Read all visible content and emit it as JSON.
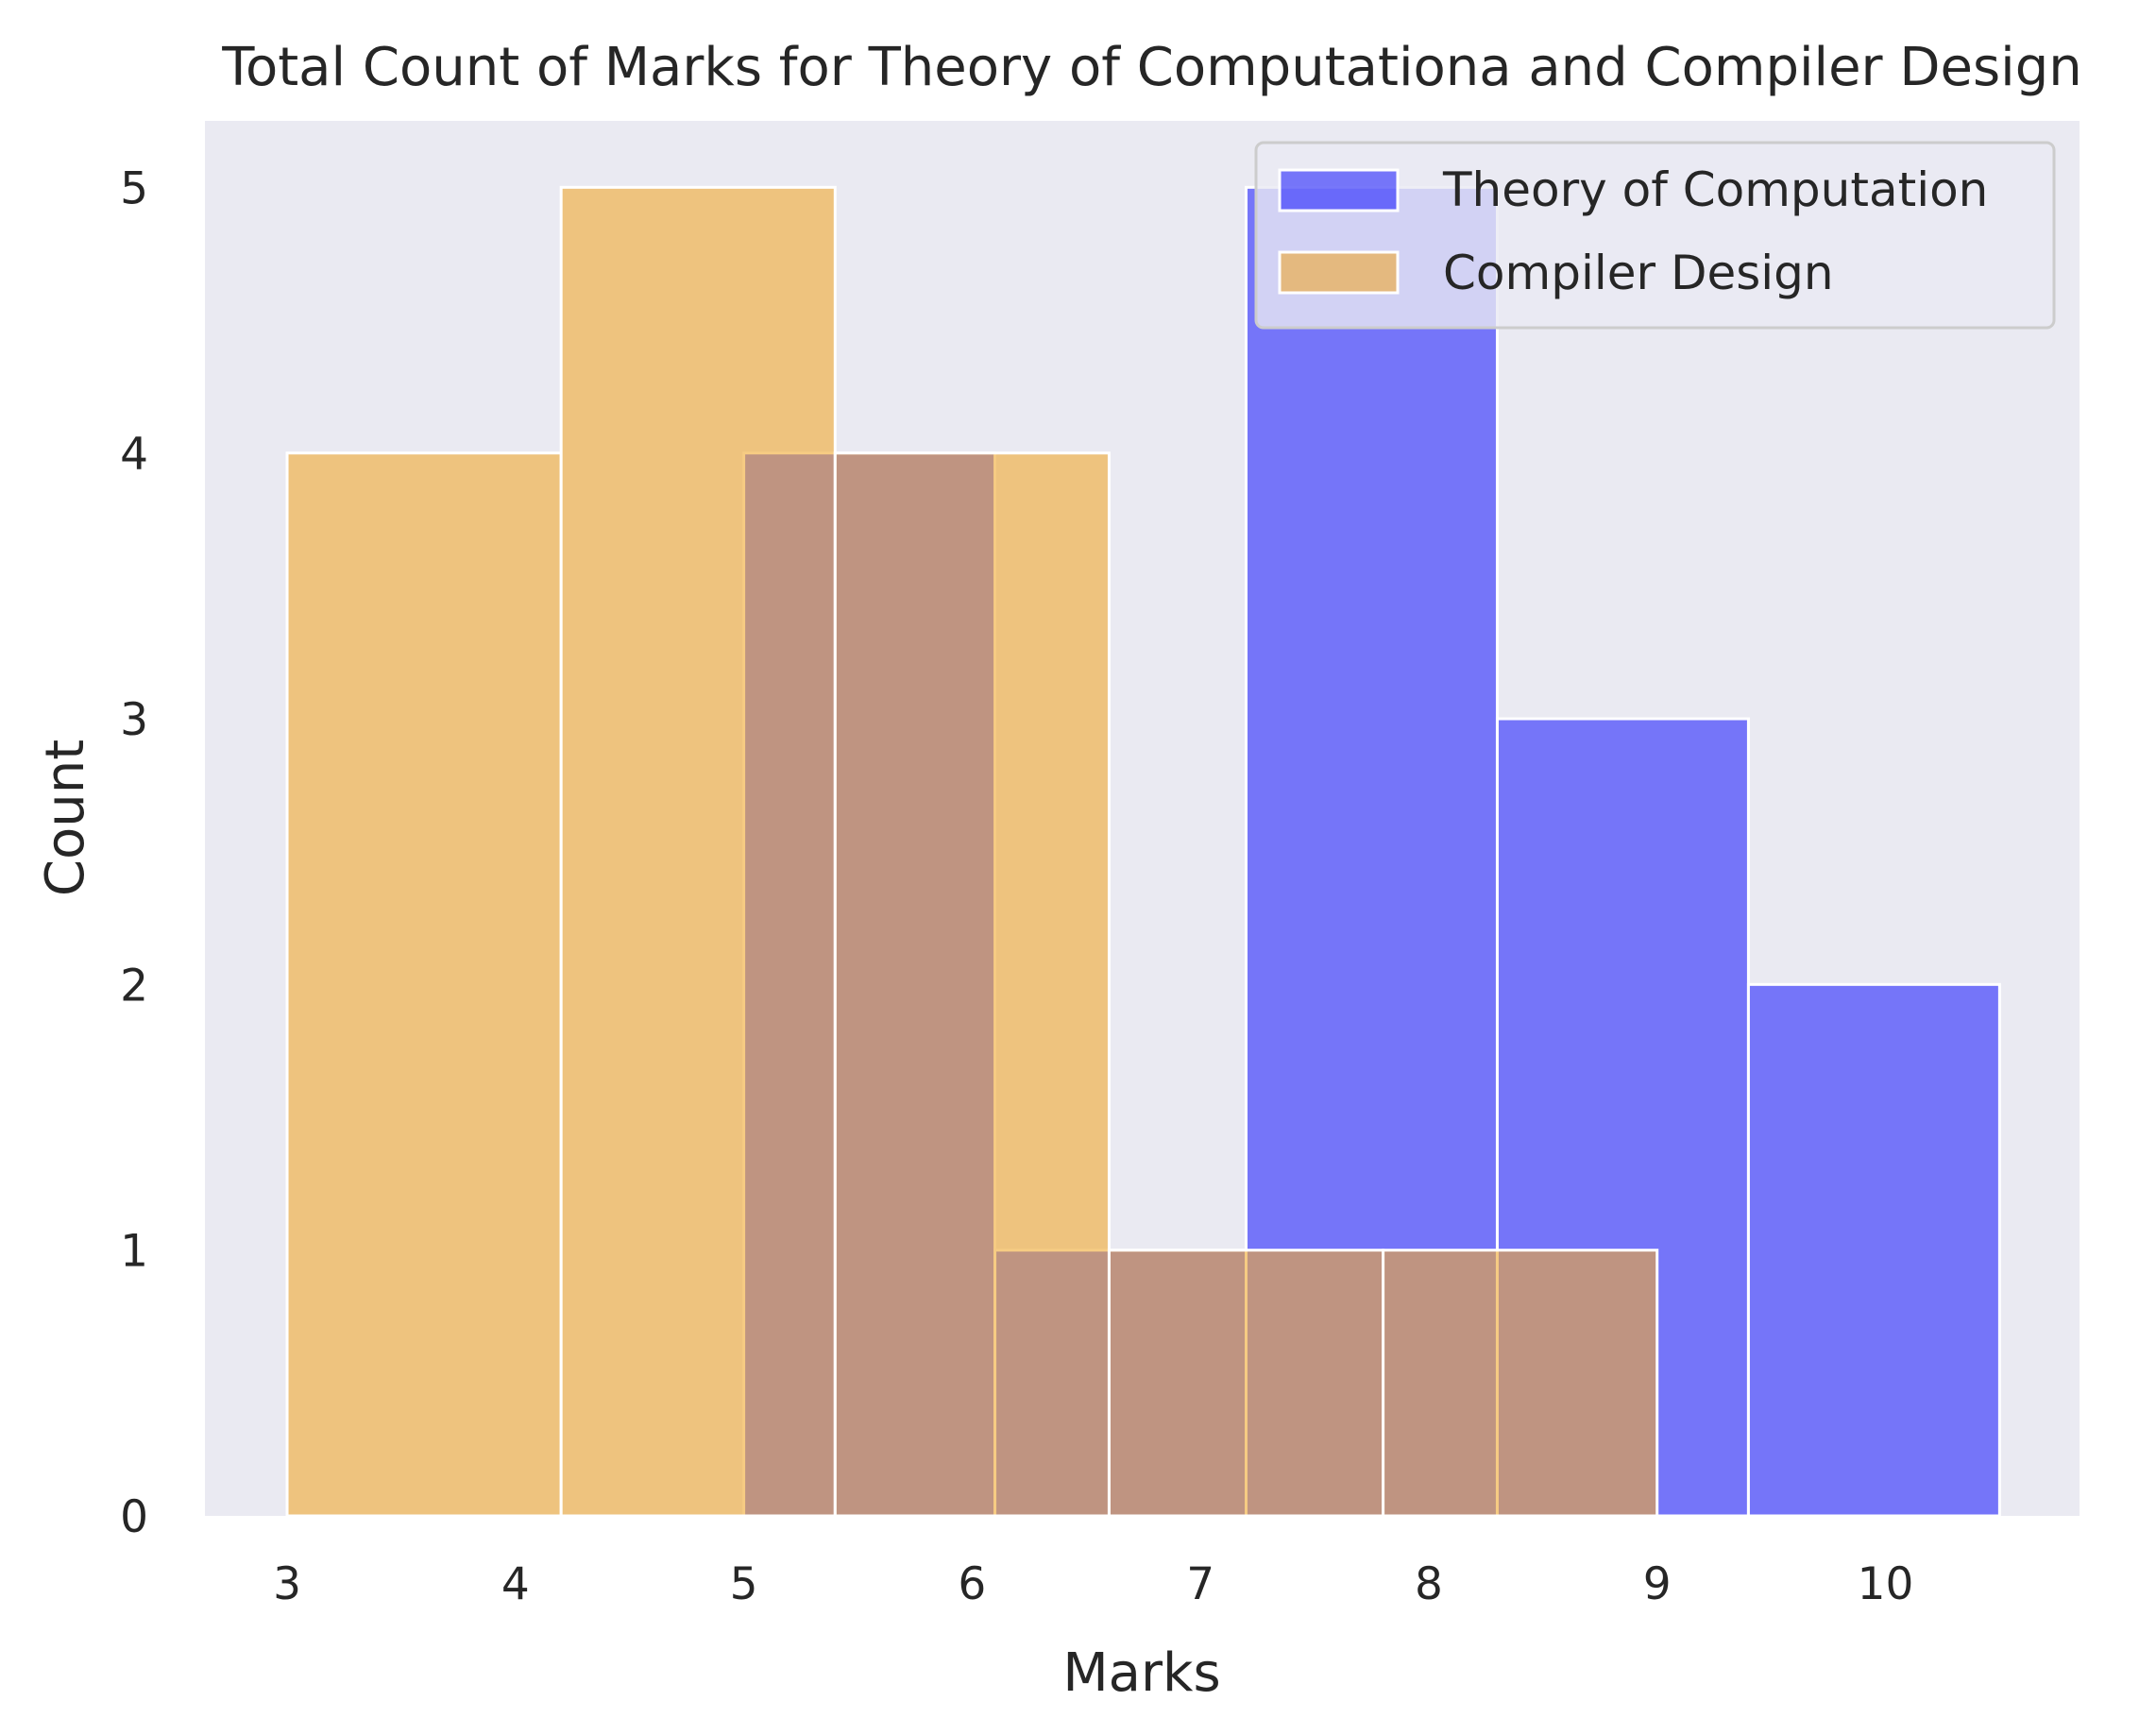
{
  "chart_data": {
    "type": "histogram",
    "title": "Total Count of Marks for Theory of Computationa and Compiler Design",
    "xlabel": "Marks",
    "ylabel": "Count",
    "xlim": [
      2.64,
      10.85
    ],
    "ylim": [
      0,
      5.25
    ],
    "x_ticks": [
      3,
      4,
      5,
      6,
      7,
      8,
      9,
      10
    ],
    "y_ticks": [
      0,
      1,
      2,
      3,
      4,
      5
    ],
    "grid": false,
    "legend_position": "top-right",
    "background_color": "#EAEAF2",
    "series": [
      {
        "name": "Theory of Computation",
        "color": "#0000FF",
        "opacity": 0.5,
        "bins": [
          {
            "x0": 5.0,
            "x1": 6.1,
            "count": 4
          },
          {
            "x0": 6.1,
            "x1": 7.2,
            "count": 1
          },
          {
            "x0": 7.2,
            "x1": 8.3,
            "count": 5
          },
          {
            "x0": 8.3,
            "x1": 9.4,
            "count": 3
          },
          {
            "x0": 9.4,
            "x1": 10.5,
            "count": 2
          }
        ]
      },
      {
        "name": "Compiler Design",
        "color": "#F0A830",
        "opacity": 0.6,
        "bins": [
          {
            "x0": 3.0,
            "x1": 4.2,
            "count": 4
          },
          {
            "x0": 4.2,
            "x1": 5.4,
            "count": 5
          },
          {
            "x0": 5.4,
            "x1": 6.6,
            "count": 4
          },
          {
            "x0": 6.6,
            "x1": 7.8,
            "count": 1
          },
          {
            "x0": 7.8,
            "x1": 9.0,
            "count": 1
          }
        ]
      }
    ]
  }
}
